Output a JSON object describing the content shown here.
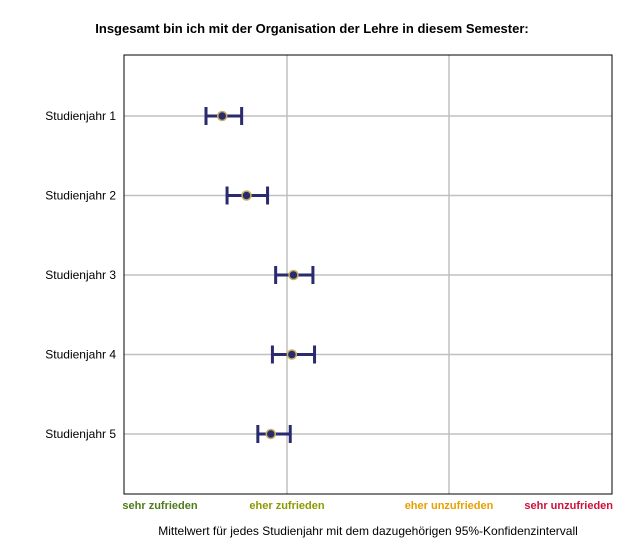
{
  "chart_data": {
    "type": "scatter",
    "title": "Insgesamt bin ich mit der Organisation der Lehre in diesem Semester:",
    "caption": "Mittelwert für jedes Studienjahr mit dem dazugehörigen 95%-Konfidenzintervall",
    "x_scale": {
      "min": 1,
      "max": 4,
      "ticks": [
        {
          "value": 1,
          "label": "sehr zufrieden",
          "color": "#4f7a1c"
        },
        {
          "value": 2,
          "label": "eher zufrieden",
          "color": "#8c9a00"
        },
        {
          "value": 3,
          "label": "eher unzufrieden",
          "color": "#e6a000"
        },
        {
          "value": 4,
          "label": "sehr unzufrieden",
          "color": "#d0103a"
        }
      ]
    },
    "grid": true,
    "rows": [
      {
        "label": "Studienjahr 1",
        "mean": 1.6,
        "ci_low": 1.5,
        "ci_high": 1.72
      },
      {
        "label": "Studienjahr 2",
        "mean": 1.75,
        "ci_low": 1.63,
        "ci_high": 1.88
      },
      {
        "label": "Studienjahr 3",
        "mean": 2.04,
        "ci_low": 1.93,
        "ci_high": 2.16
      },
      {
        "label": "Studienjahr 4",
        "mean": 2.03,
        "ci_low": 1.91,
        "ci_high": 2.17
      },
      {
        "label": "Studienjahr 5",
        "mean": 1.9,
        "ci_low": 1.82,
        "ci_high": 2.02
      }
    ],
    "colors": {
      "interval": "#2a2a6e",
      "point_fill": "#2a2a6e",
      "point_stroke": "#c8b060",
      "grid": "#c0c0c0",
      "frame": "#000000"
    }
  }
}
